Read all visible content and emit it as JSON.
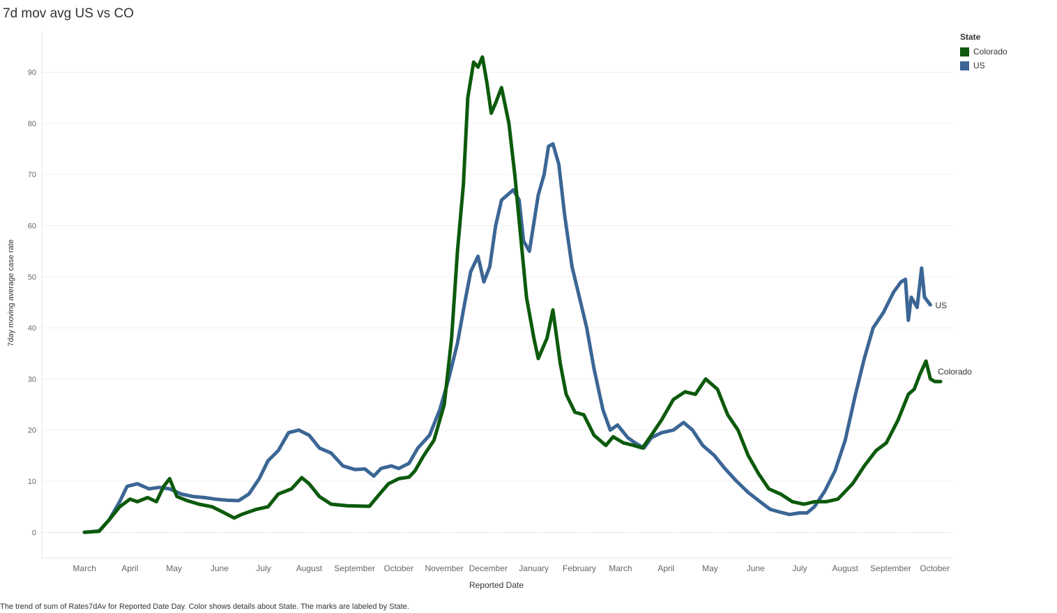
{
  "title": "7d mov avg US vs CO",
  "caption": "The trend of sum of Rates7dAv for Reported Date Day.  Color shows details about State.  The marks are labeled by State.",
  "legend": {
    "title": "State",
    "items": [
      {
        "label": "Colorado",
        "color": "#0c5a0c"
      },
      {
        "label": "US",
        "color": "#3b6695"
      }
    ]
  },
  "chart_data": {
    "type": "line",
    "xlabel": "Reported Date",
    "ylabel": "7day moving average case rate",
    "ylim": [
      -5,
      98
    ],
    "y_ticks": [
      0,
      10,
      20,
      30,
      40,
      50,
      60,
      70,
      80,
      90
    ],
    "x_range": [
      "2020-02-15",
      "2021-10-27"
    ],
    "x_ticks": [
      {
        "label": "March",
        "date": "2020-03-15"
      },
      {
        "label": "April",
        "date": "2020-04-15"
      },
      {
        "label": "May",
        "date": "2020-05-15"
      },
      {
        "label": "June",
        "date": "2020-06-15"
      },
      {
        "label": "July",
        "date": "2020-07-15"
      },
      {
        "label": "August",
        "date": "2020-08-15"
      },
      {
        "label": "September",
        "date": "2020-09-15"
      },
      {
        "label": "October",
        "date": "2020-10-15"
      },
      {
        "label": "November",
        "date": "2020-11-15"
      },
      {
        "label": "December",
        "date": "2020-12-15"
      },
      {
        "label": "January",
        "date": "2021-01-15"
      },
      {
        "label": "February",
        "date": "2021-02-15"
      },
      {
        "label": "March",
        "date": "2021-03-15"
      },
      {
        "label": "April",
        "date": "2021-04-15"
      },
      {
        "label": "May",
        "date": "2021-05-15"
      },
      {
        "label": "June",
        "date": "2021-06-15"
      },
      {
        "label": "July",
        "date": "2021-07-15"
      },
      {
        "label": "August",
        "date": "2021-08-15"
      },
      {
        "label": "September",
        "date": "2021-09-15"
      },
      {
        "label": "October",
        "date": "2021-10-15"
      }
    ],
    "series": [
      {
        "name": "Colorado",
        "color": "#0c5a0c",
        "end_label": "Colorado",
        "points": [
          [
            "2020-03-15",
            0
          ],
          [
            "2020-03-25",
            0.2
          ],
          [
            "2020-04-01",
            2.5
          ],
          [
            "2020-04-08",
            5
          ],
          [
            "2020-04-15",
            6.5
          ],
          [
            "2020-04-20",
            6
          ],
          [
            "2020-04-27",
            6.8
          ],
          [
            "2020-05-03",
            6
          ],
          [
            "2020-05-08",
            9
          ],
          [
            "2020-05-12",
            10.5
          ],
          [
            "2020-05-17",
            7
          ],
          [
            "2020-05-24",
            6.2
          ],
          [
            "2020-06-01",
            5.5
          ],
          [
            "2020-06-10",
            5
          ],
          [
            "2020-06-17",
            4
          ],
          [
            "2020-06-25",
            2.8
          ],
          [
            "2020-06-30",
            3.5
          ],
          [
            "2020-07-10",
            4.5
          ],
          [
            "2020-07-18",
            5
          ],
          [
            "2020-07-25",
            7.5
          ],
          [
            "2020-08-03",
            8.5
          ],
          [
            "2020-08-10",
            10.7
          ],
          [
            "2020-08-15",
            9.5
          ],
          [
            "2020-08-22",
            7
          ],
          [
            "2020-08-30",
            5.5
          ],
          [
            "2020-09-10",
            5.2
          ],
          [
            "2020-09-25",
            5.1
          ],
          [
            "2020-10-02",
            7.5
          ],
          [
            "2020-10-08",
            9.5
          ],
          [
            "2020-10-15",
            10.5
          ],
          [
            "2020-10-22",
            10.8
          ],
          [
            "2020-10-26",
            12
          ],
          [
            "2020-11-01",
            15
          ],
          [
            "2020-11-08",
            18
          ],
          [
            "2020-11-15",
            25
          ],
          [
            "2020-11-20",
            38
          ],
          [
            "2020-11-24",
            55
          ],
          [
            "2020-11-28",
            68
          ],
          [
            "2020-12-01",
            85
          ],
          [
            "2020-12-05",
            92
          ],
          [
            "2020-12-08",
            91
          ],
          [
            "2020-12-11",
            93
          ],
          [
            "2020-12-14",
            88
          ],
          [
            "2020-12-17",
            82
          ],
          [
            "2020-12-20",
            84
          ],
          [
            "2020-12-24",
            87
          ],
          [
            "2020-12-29",
            80
          ],
          [
            "2021-01-02",
            70
          ],
          [
            "2021-01-06",
            58
          ],
          [
            "2021-01-10",
            46
          ],
          [
            "2021-01-15",
            38
          ],
          [
            "2021-01-18",
            34
          ],
          [
            "2021-01-24",
            38
          ],
          [
            "2021-01-28",
            43.5
          ],
          [
            "2021-02-02",
            33
          ],
          [
            "2021-02-06",
            27
          ],
          [
            "2021-02-12",
            23.5
          ],
          [
            "2021-02-18",
            23
          ],
          [
            "2021-02-25",
            19
          ],
          [
            "2021-03-05",
            17
          ],
          [
            "2021-03-10",
            18.7
          ],
          [
            "2021-03-17",
            17.5
          ],
          [
            "2021-03-24",
            17
          ],
          [
            "2021-03-30",
            16.5
          ],
          [
            "2021-04-05",
            19
          ],
          [
            "2021-04-12",
            22
          ],
          [
            "2021-04-20",
            26
          ],
          [
            "2021-04-28",
            27.5
          ],
          [
            "2021-05-05",
            27
          ],
          [
            "2021-05-12",
            30
          ],
          [
            "2021-05-20",
            28
          ],
          [
            "2021-05-27",
            23
          ],
          [
            "2021-06-03",
            20
          ],
          [
            "2021-06-10",
            15
          ],
          [
            "2021-06-17",
            11.5
          ],
          [
            "2021-06-24",
            8.5
          ],
          [
            "2021-07-02",
            7.5
          ],
          [
            "2021-07-10",
            6
          ],
          [
            "2021-07-18",
            5.5
          ],
          [
            "2021-07-25",
            6
          ],
          [
            "2021-08-02",
            6
          ],
          [
            "2021-08-10",
            6.5
          ],
          [
            "2021-08-20",
            9.5
          ],
          [
            "2021-08-28",
            13
          ],
          [
            "2021-09-05",
            16
          ],
          [
            "2021-09-12",
            17.5
          ],
          [
            "2021-09-20",
            22
          ],
          [
            "2021-09-27",
            27
          ],
          [
            "2021-10-01",
            28
          ],
          [
            "2021-10-05",
            31
          ],
          [
            "2021-10-09",
            33.5
          ],
          [
            "2021-10-12",
            30
          ],
          [
            "2021-10-15",
            29.5
          ],
          [
            "2021-10-19",
            29.5
          ]
        ]
      },
      {
        "name": "US",
        "color": "#3b6695",
        "end_label": "US",
        "points": [
          [
            "2020-03-15",
            0
          ],
          [
            "2020-03-25",
            0.3
          ],
          [
            "2020-04-01",
            2.5
          ],
          [
            "2020-04-08",
            6
          ],
          [
            "2020-04-13",
            9
          ],
          [
            "2020-04-20",
            9.5
          ],
          [
            "2020-04-28",
            8.5
          ],
          [
            "2020-05-05",
            8.8
          ],
          [
            "2020-05-12",
            8.5
          ],
          [
            "2020-05-20",
            7.5
          ],
          [
            "2020-05-28",
            7
          ],
          [
            "2020-06-05",
            6.8
          ],
          [
            "2020-06-12",
            6.5
          ],
          [
            "2020-06-20",
            6.3
          ],
          [
            "2020-06-28",
            6.2
          ],
          [
            "2020-07-05",
            7.5
          ],
          [
            "2020-07-12",
            10.5
          ],
          [
            "2020-07-18",
            14
          ],
          [
            "2020-07-25",
            16
          ],
          [
            "2020-08-01",
            19.5
          ],
          [
            "2020-08-08",
            20
          ],
          [
            "2020-08-15",
            19
          ],
          [
            "2020-08-22",
            16.5
          ],
          [
            "2020-08-30",
            15.5
          ],
          [
            "2020-09-07",
            13
          ],
          [
            "2020-09-15",
            12.3
          ],
          [
            "2020-09-22",
            12.4
          ],
          [
            "2020-09-28",
            11
          ],
          [
            "2020-10-03",
            12.5
          ],
          [
            "2020-10-10",
            13
          ],
          [
            "2020-10-15",
            12.5
          ],
          [
            "2020-10-22",
            13.5
          ],
          [
            "2020-10-28",
            16.5
          ],
          [
            "2020-11-05",
            19
          ],
          [
            "2020-11-12",
            24
          ],
          [
            "2020-11-18",
            30
          ],
          [
            "2020-11-24",
            37
          ],
          [
            "2020-11-29",
            45
          ],
          [
            "2020-12-03",
            51
          ],
          [
            "2020-12-08",
            54
          ],
          [
            "2020-12-12",
            49
          ],
          [
            "2020-12-16",
            52
          ],
          [
            "2020-12-20",
            60
          ],
          [
            "2020-12-24",
            65
          ],
          [
            "2020-12-28",
            66
          ],
          [
            "2021-01-01",
            67
          ],
          [
            "2021-01-05",
            65
          ],
          [
            "2021-01-08",
            57
          ],
          [
            "2021-01-12",
            55
          ],
          [
            "2021-01-18",
            66
          ],
          [
            "2021-01-22",
            70
          ],
          [
            "2021-01-25",
            75.5
          ],
          [
            "2021-01-28",
            76
          ],
          [
            "2021-02-01",
            72
          ],
          [
            "2021-02-05",
            62
          ],
          [
            "2021-02-10",
            52
          ],
          [
            "2021-02-15",
            46
          ],
          [
            "2021-02-20",
            40
          ],
          [
            "2021-02-25",
            32
          ],
          [
            "2021-03-03",
            24
          ],
          [
            "2021-03-08",
            20
          ],
          [
            "2021-03-13",
            21
          ],
          [
            "2021-03-20",
            18.5
          ],
          [
            "2021-03-25",
            17.5
          ],
          [
            "2021-03-31",
            16.5
          ],
          [
            "2021-04-05",
            18.5
          ],
          [
            "2021-04-12",
            19.5
          ],
          [
            "2021-04-20",
            20
          ],
          [
            "2021-04-27",
            21.5
          ],
          [
            "2021-05-03",
            20
          ],
          [
            "2021-05-10",
            17
          ],
          [
            "2021-05-18",
            15
          ],
          [
            "2021-05-25",
            12.5
          ],
          [
            "2021-06-02",
            10
          ],
          [
            "2021-06-10",
            7.8
          ],
          [
            "2021-06-18",
            6
          ],
          [
            "2021-06-25",
            4.5
          ],
          [
            "2021-07-01",
            4
          ],
          [
            "2021-07-08",
            3.5
          ],
          [
            "2021-07-15",
            3.8
          ],
          [
            "2021-07-20",
            3.8
          ],
          [
            "2021-07-25",
            5
          ],
          [
            "2021-08-01",
            8
          ],
          [
            "2021-08-08",
            12
          ],
          [
            "2021-08-15",
            18
          ],
          [
            "2021-08-22",
            27
          ],
          [
            "2021-08-28",
            34
          ],
          [
            "2021-09-03",
            40
          ],
          [
            "2021-09-10",
            43
          ],
          [
            "2021-09-17",
            47
          ],
          [
            "2021-09-22",
            49
          ],
          [
            "2021-09-25",
            49.5
          ],
          [
            "2021-09-27",
            41.5
          ],
          [
            "2021-09-29",
            46
          ],
          [
            "2021-10-03",
            44
          ],
          [
            "2021-10-06",
            51.7
          ],
          [
            "2021-10-08",
            46
          ],
          [
            "2021-10-12",
            44.5
          ]
        ]
      }
    ]
  }
}
